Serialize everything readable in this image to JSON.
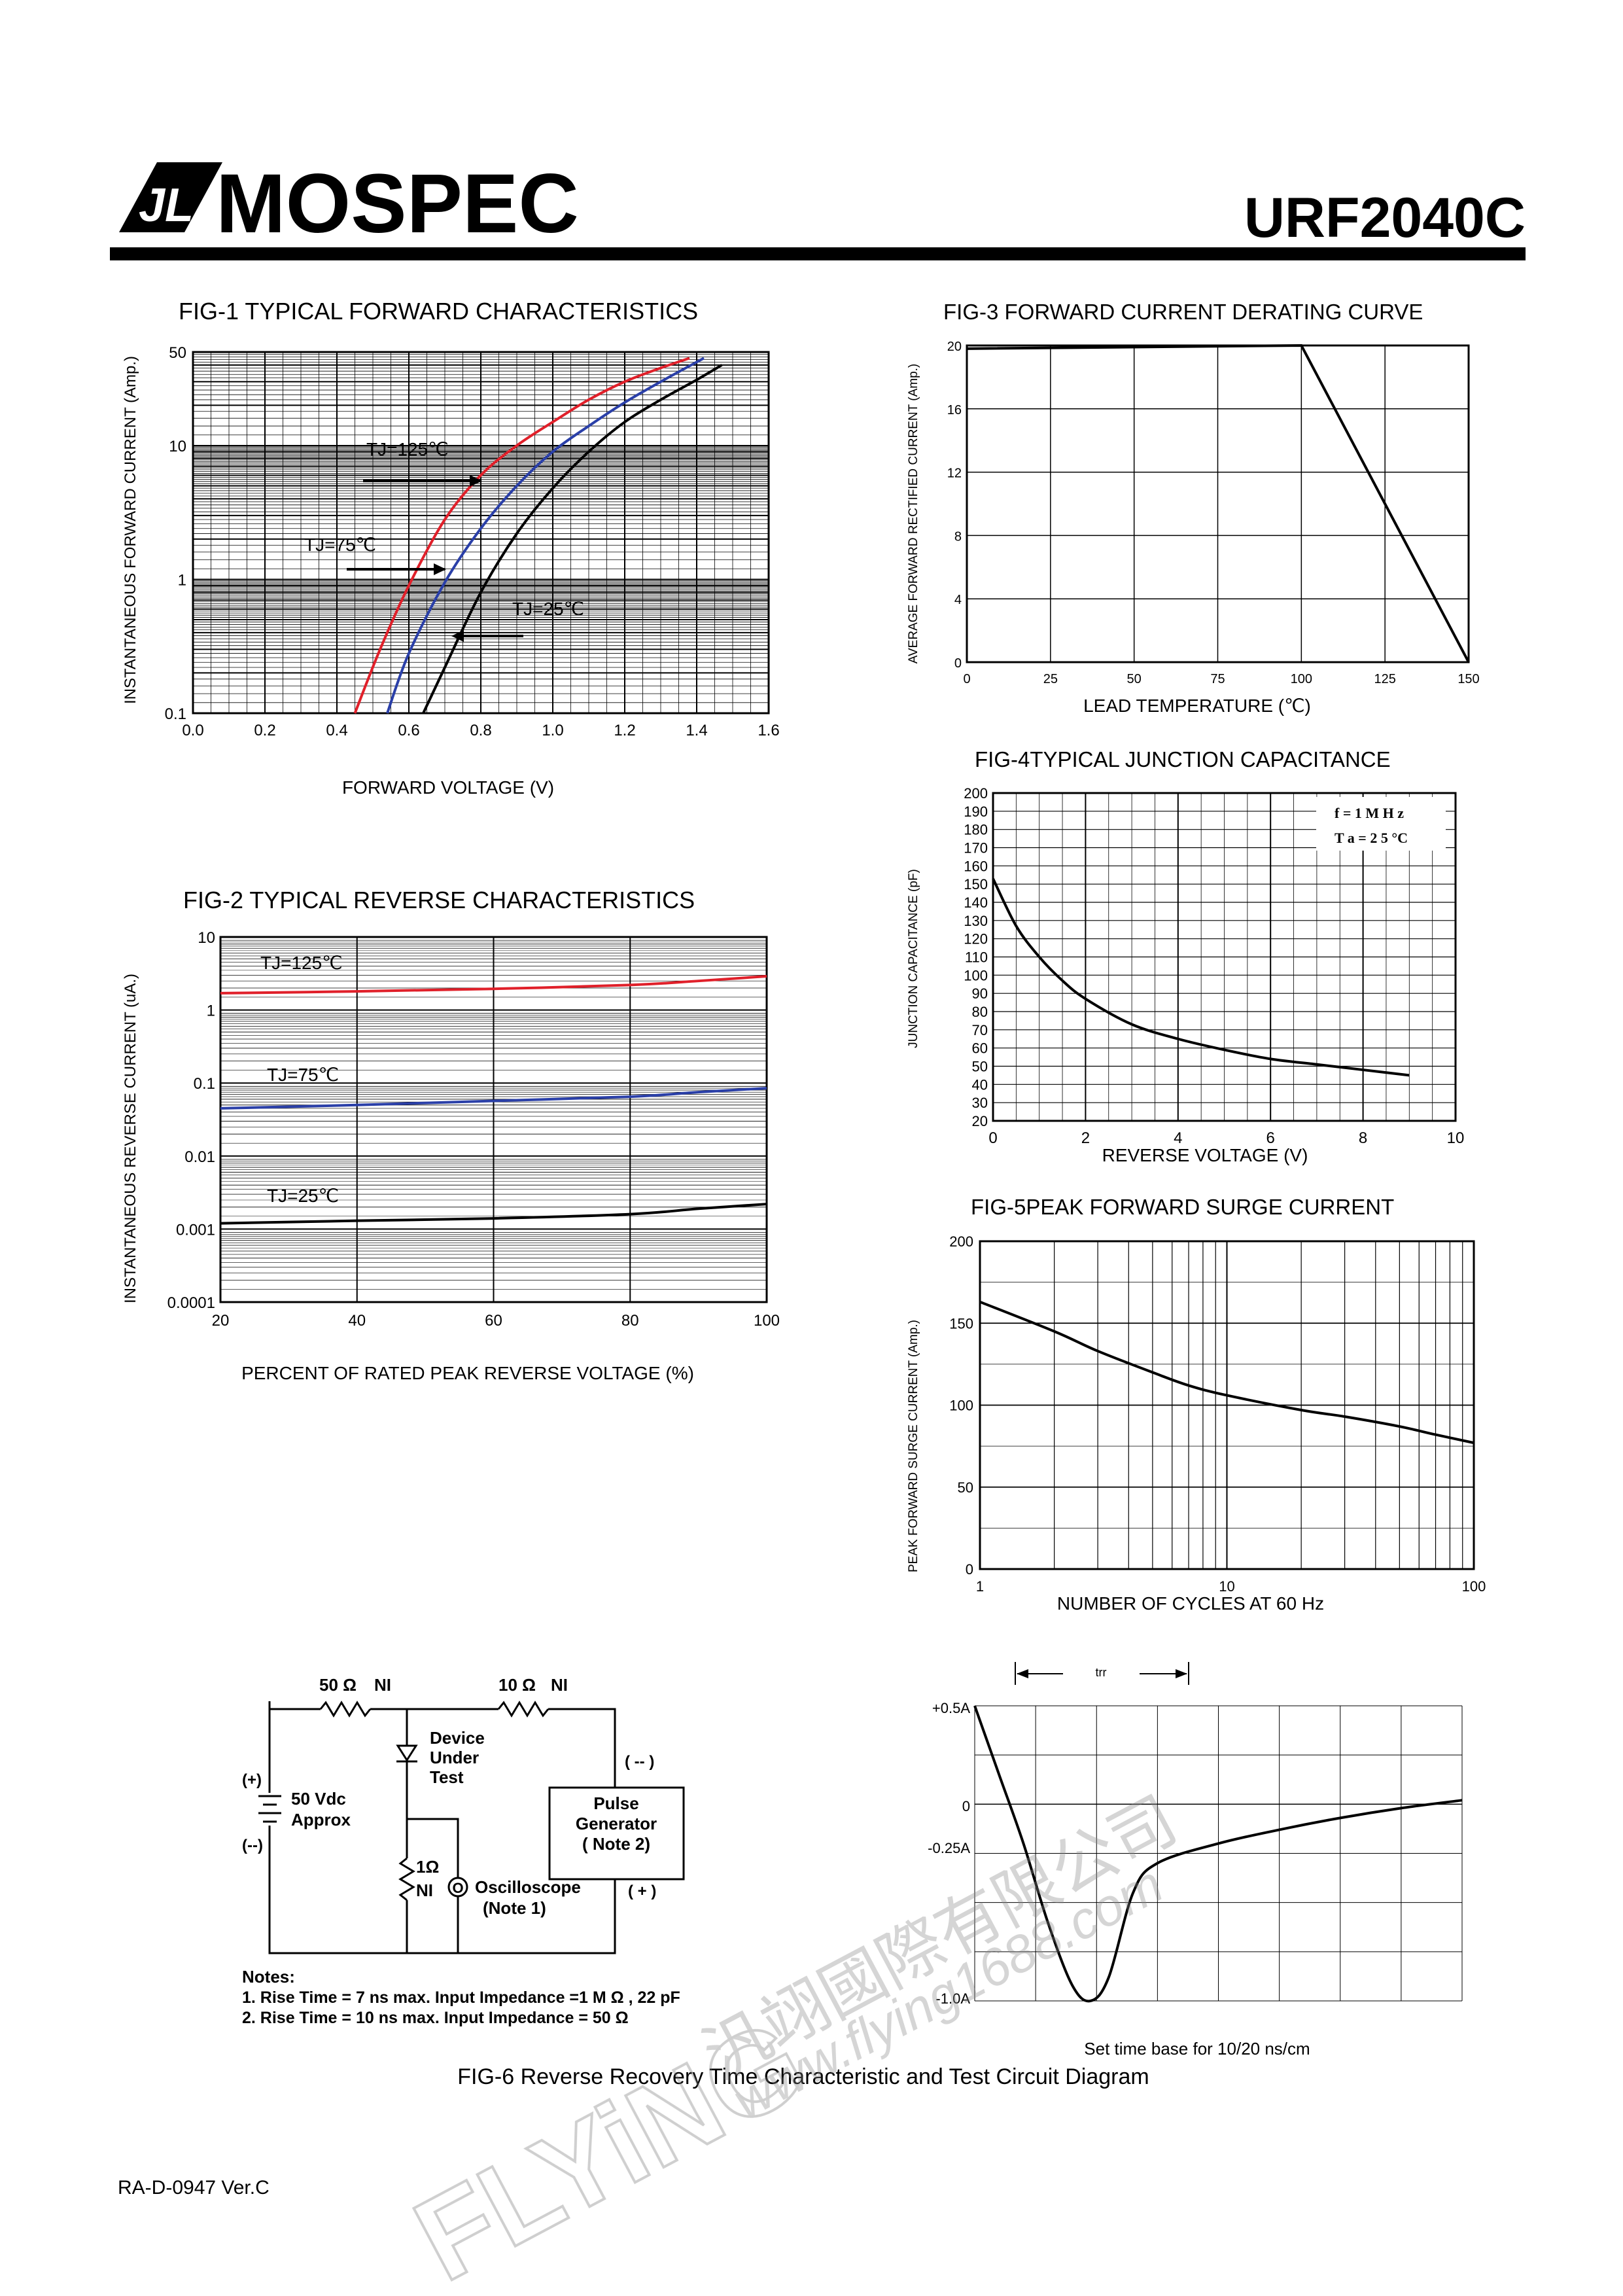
{
  "header": {
    "brand": "MOSPEC",
    "logo_glyph": "JL",
    "part_number": "URF2040C"
  },
  "footer": {
    "doc_code": "RA-D-0947 Ver.C"
  },
  "watermark": {
    "text_cn": "汎翊國際有限公司",
    "text_url": "www.flying1688.com",
    "text_brand": "FLYiNG"
  },
  "fig1": {
    "title": "FIG-1 TYPICAL FORWARD CHARACTERISTICS",
    "xlabel": "FORWARD VOLTAGE (V)",
    "ylabel": "INSTANTANEOUS FORWARD CURRENT (Amp.)",
    "xticks": [
      "0.0",
      "0.2",
      "0.4",
      "0.6",
      "0.8",
      "1.0",
      "1.2",
      "1.4",
      "1.6"
    ],
    "yticks": [
      "0.1",
      "1",
      "10",
      "50"
    ],
    "annotations": [
      "TJ=125℃",
      "TJ=75℃",
      "TJ=25℃"
    ]
  },
  "fig2": {
    "title": "FIG-2 TYPICAL REVERSE CHARACTERISTICS",
    "xlabel": "PERCENT OF RATED PEAK REVERSE VOLTAGE (%)",
    "ylabel": "INSTANTANEOUS REVERSE CURRENT (uA.)",
    "xticks": [
      "20",
      "40",
      "60",
      "80",
      "100"
    ],
    "yticks": [
      "0.0001",
      "0.001",
      "0.01",
      "0.1",
      "1",
      "10"
    ],
    "annotations": [
      "TJ=125℃",
      "TJ=75℃",
      "TJ=25℃"
    ]
  },
  "fig3": {
    "title": "FIG-3 FORWARD CURRENT DERATING CURVE",
    "xlabel": "LEAD TEMPERATURE (℃)",
    "ylabel": "AVERAGE FORWARD RECTIFIED CURRENT (Amp.)",
    "xticks": [
      "0",
      "25",
      "50",
      "75",
      "100",
      "125",
      "150"
    ],
    "yticks": [
      "0",
      "4",
      "8",
      "12",
      "16",
      "20"
    ]
  },
  "fig4": {
    "title": "FIG-4TYPICAL JUNCTION CAPACITANCE",
    "xlabel": "REVERSE VOLTAGE (V)",
    "ylabel": "JUNCTION CAPACITANCE (pF)",
    "xticks": [
      "0",
      "2",
      "4",
      "6",
      "8",
      "10"
    ],
    "yticks": [
      "20",
      "30",
      "40",
      "50",
      "60",
      "70",
      "80",
      "90",
      "100",
      "110",
      "120",
      "130",
      "140",
      "150",
      "160",
      "170",
      "180",
      "190",
      "200"
    ],
    "legend": [
      "f = 1 M H z",
      "T a = 2 5 °C"
    ]
  },
  "fig5": {
    "title": "FIG-5PEAK FORWARD SURGE CURRENT",
    "xlabel": "NUMBER OF CYCLES AT 60 Hz",
    "ylabel": "PEAK FORWARD SURGE CURRENT (Amp.)",
    "xticks": [
      "1",
      "10",
      "100"
    ],
    "yticks": [
      "0",
      "50",
      "100",
      "150",
      "200"
    ]
  },
  "fig6": {
    "title": "FIG-6 Reverse Recovery Time Characteristic and Test Circuit Diagram",
    "circuit": {
      "r1": "50 Ω",
      "r1_ni": "NI",
      "r2": "10 Ω",
      "r2_ni": "NI",
      "dut": [
        "Device",
        "Under",
        "Test"
      ],
      "supply_plus": "(+)",
      "supply_minus": "(--)",
      "supply": [
        "50 Vdc",
        "Approx"
      ],
      "r3": "1Ω",
      "r3_ni": "NI",
      "scope": [
        "Oscilloscope",
        "(Note 1)"
      ],
      "scope_symbol": "O",
      "pulse": [
        "Pulse",
        "Generator",
        "( Note 2)"
      ],
      "pg_minus": "( -- )",
      "pg_plus": "( + )"
    },
    "notes_title": "Notes:",
    "notes": [
      "1. Rise Time = 7 ns max. Input Impedance =1 M Ω , 22 pF",
      "2. Rise Time = 10 ns max. Input Impedance = 50 Ω"
    ],
    "scope_labels": {
      "trr": "trr",
      "plus": "+0.5A",
      "zero": "0",
      "m025": "-0.25A",
      "m10": "-1.0A"
    },
    "timebase": "Set time base for 10/20 ns/cm"
  },
  "chart_data": [
    {
      "id": "fig1",
      "type": "line",
      "title": "FIG-1 TYPICAL FORWARD CHARACTERISTICS",
      "xlabel": "FORWARD VOLTAGE (V)",
      "ylabel": "INSTANTANEOUS FORWARD CURRENT (Amp.)",
      "xlim": [
        0,
        1.6
      ],
      "ylim": [
        0.1,
        50
      ],
      "yscale": "log",
      "grid": true,
      "series": [
        {
          "name": "TJ=125℃",
          "color": "#e0202a",
          "x": [
            0.45,
            0.52,
            0.6,
            0.7,
            0.8,
            0.9,
            1.0,
            1.1,
            1.2,
            1.3,
            1.38
          ],
          "y": [
            0.1,
            0.3,
            0.9,
            2.8,
            6,
            10,
            15,
            22,
            30,
            38,
            45
          ]
        },
        {
          "name": "TJ=75℃",
          "color": "#2a3fa8",
          "x": [
            0.54,
            0.6,
            0.7,
            0.8,
            0.9,
            1.0,
            1.1,
            1.2,
            1.3,
            1.42
          ],
          "y": [
            0.1,
            0.28,
            0.95,
            2.4,
            5,
            9,
            14,
            21,
            30,
            45
          ]
        },
        {
          "name": "TJ=25℃",
          "color": "#000000",
          "x": [
            0.64,
            0.7,
            0.8,
            0.9,
            1.0,
            1.1,
            1.2,
            1.3,
            1.4,
            1.47
          ],
          "y": [
            0.1,
            0.22,
            0.8,
            2.2,
            4.8,
            9,
            15,
            22,
            31,
            40
          ]
        }
      ]
    },
    {
      "id": "fig2",
      "type": "line",
      "title": "FIG-2 TYPICAL REVERSE CHARACTERISTICS",
      "xlabel": "PERCENT OF RATED PEAK REVERSE VOLTAGE (%)",
      "ylabel": "INSTANTANEOUS REVERSE CURRENT (uA.)",
      "xlim": [
        20,
        100
      ],
      "ylim": [
        0.0001,
        10
      ],
      "yscale": "log",
      "grid": true,
      "series": [
        {
          "name": "TJ=125℃",
          "color": "#e0202a",
          "x": [
            20,
            40,
            60,
            80,
            90,
            100
          ],
          "y": [
            1.7,
            1.8,
            1.95,
            2.2,
            2.5,
            2.9
          ]
        },
        {
          "name": "TJ=75℃",
          "color": "#2a3fa8",
          "x": [
            20,
            40,
            60,
            80,
            90,
            100
          ],
          "y": [
            0.045,
            0.05,
            0.057,
            0.065,
            0.075,
            0.085
          ]
        },
        {
          "name": "TJ=25℃",
          "color": "#000000",
          "x": [
            20,
            40,
            60,
            80,
            90,
            100
          ],
          "y": [
            0.0012,
            0.0013,
            0.0014,
            0.0016,
            0.0019,
            0.0022
          ]
        }
      ]
    },
    {
      "id": "fig3",
      "type": "line",
      "title": "FIG-3 FORWARD CURRENT DERATING CURVE",
      "xlabel": "LEAD TEMPERATURE (℃)",
      "ylabel": "AVERAGE FORWARD RECTIFIED CURRENT (Amp.)",
      "xlim": [
        0,
        150
      ],
      "ylim": [
        0,
        20
      ],
      "grid": true,
      "series": [
        {
          "x": [
            0,
            100,
            150
          ],
          "y": [
            19.8,
            20,
            0
          ],
          "color": "#000000"
        }
      ]
    },
    {
      "id": "fig4",
      "type": "line",
      "title": "FIG-4TYPICAL JUNCTION CAPACITANCE",
      "xlabel": "REVERSE VOLTAGE (V)",
      "ylabel": "JUNCTION CAPACITANCE (pF)",
      "xlim": [
        0,
        10
      ],
      "ylim": [
        20,
        200
      ],
      "grid": true,
      "legend_position": "top-right",
      "series": [
        {
          "x": [
            0,
            0.5,
            1,
            1.5,
            2,
            3,
            4,
            5,
            6,
            7,
            8,
            9
          ],
          "y": [
            153,
            127,
            110,
            97,
            87,
            73,
            65,
            59,
            54,
            51,
            48,
            45
          ],
          "color": "#000000"
        }
      ]
    },
    {
      "id": "fig5",
      "type": "line",
      "title": "FIG-5PEAK FORWARD SURGE CURRENT",
      "xlabel": "NUMBER OF CYCLES AT 60 Hz",
      "ylabel": "PEAK FORWARD SURGE CURRENT (Amp.)",
      "xlim": [
        1,
        100
      ],
      "xscale": "log",
      "ylim": [
        0,
        200
      ],
      "grid": true,
      "series": [
        {
          "x": [
            1,
            2,
            3,
            5,
            7,
            10,
            20,
            30,
            50,
            70,
            100
          ],
          "y": [
            163,
            145,
            133,
            120,
            112,
            106,
            97,
            93,
            87,
            82,
            77
          ],
          "color": "#000000"
        }
      ]
    },
    {
      "id": "fig6-waveform",
      "type": "line",
      "title": "FIG-6 Reverse Recovery Time Characteristic and Test Circuit Diagram",
      "xlim": [
        0,
        8
      ],
      "ylim": [
        -1.0,
        0.5
      ],
      "grid": true,
      "series": [
        {
          "x": [
            0,
            0.4,
            0.8,
            1.2,
            1.6,
            1.9,
            2.2,
            2.6,
            3,
            4,
            5,
            6,
            7,
            8
          ],
          "y": [
            0.5,
            0.15,
            -0.2,
            -0.6,
            -0.92,
            -1.0,
            -0.88,
            -0.45,
            -0.3,
            -0.2,
            -0.13,
            -0.07,
            -0.02,
            0.02
          ],
          "color": "#000000"
        }
      ]
    }
  ]
}
